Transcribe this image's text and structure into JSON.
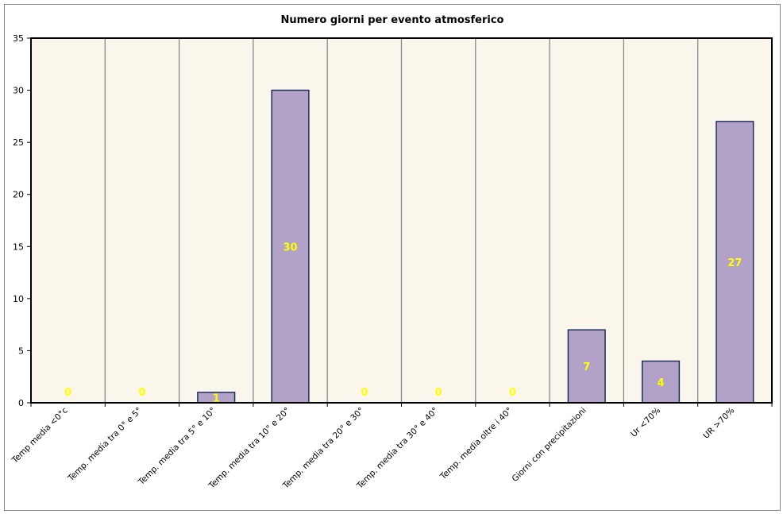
{
  "chart_data": {
    "type": "bar",
    "title": "Numero giorni per evento atmosferico",
    "xlabel": "",
    "ylabel": "",
    "categories": [
      "Temp media <0°c",
      "Temp. media tra 0° e 5°",
      "Temp. media tra 5° e 10°",
      "Temp. media tra 10° e 20°",
      "Temp. media tra 20° e 30°",
      "Temp. media tra 30° e 40°",
      "Temp. media oltre i 40°",
      "Giorni con precipitazioni",
      "Ur <70%",
      "UR >70%"
    ],
    "values": [
      0,
      0,
      1,
      30,
      0,
      0,
      0,
      7,
      4,
      27
    ],
    "data_labels": [
      "0",
      "0",
      "1",
      "30",
      "0",
      "0",
      "0",
      "7",
      "4",
      "27"
    ],
    "ylim": [
      0,
      35
    ],
    "yticks": [
      "0",
      "5",
      "10",
      "15",
      "20",
      "25",
      "30",
      "35"
    ],
    "ytick_values": [
      0,
      5,
      10,
      15,
      20,
      25,
      30,
      35
    ],
    "grid": true,
    "gridlines": "vertical",
    "legend": "none",
    "colors": {
      "bar_fill": "#b3a2c7",
      "bar_stroke": "#1f2f5c",
      "plot_background": "#fbf6ec",
      "plot_border": "#000000",
      "gridline": "#808080",
      "data_label": "#ffff00"
    }
  }
}
